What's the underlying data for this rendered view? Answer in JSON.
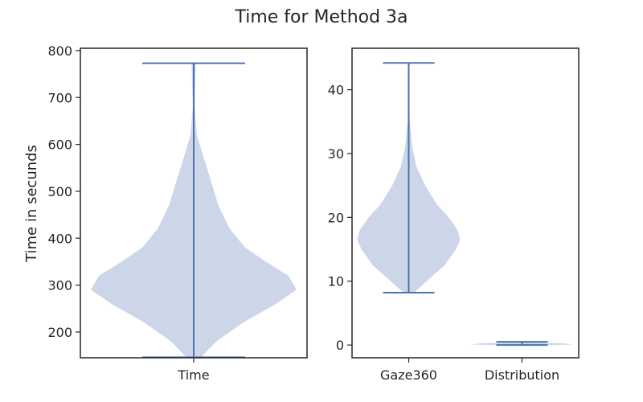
{
  "figure": {
    "title": "Time for Method 3a"
  },
  "colors": {
    "violin_fill": "#ccd6e8",
    "line": "#4c72b0",
    "frame": "#262626"
  },
  "chart_data": [
    {
      "type": "violin",
      "categories": [
        "Time"
      ],
      "ylabel": "Time in secunds",
      "ylim": [
        145,
        805
      ],
      "yticks": [
        200,
        300,
        400,
        500,
        600,
        700,
        800
      ],
      "series": [
        {
          "category": "Time",
          "min": 146,
          "max": 773,
          "density_profile": [
            [
              146,
              0.07
            ],
            [
              180,
              0.22
            ],
            [
              220,
              0.48
            ],
            [
              260,
              0.8
            ],
            [
              290,
              1.0
            ],
            [
              320,
              0.92
            ],
            [
              350,
              0.7
            ],
            [
              380,
              0.5
            ],
            [
              420,
              0.35
            ],
            [
              470,
              0.24
            ],
            [
              520,
              0.17
            ],
            [
              570,
              0.1
            ],
            [
              620,
              0.03
            ],
            [
              680,
              0.01
            ],
            [
              773,
              0.02
            ]
          ]
        }
      ]
    },
    {
      "type": "violin",
      "categories": [
        "Gaze360",
        "Distribution"
      ],
      "ylabel": "",
      "ylim": [
        -2,
        46.5
      ],
      "yticks": [
        0,
        10,
        20,
        30,
        40
      ],
      "series": [
        {
          "category": "Gaze360",
          "min": 8.2,
          "max": 44.2,
          "density_profile": [
            [
              8.2,
              0.1
            ],
            [
              10,
              0.35
            ],
            [
              12.5,
              0.7
            ],
            [
              15,
              0.92
            ],
            [
              16.5,
              1.0
            ],
            [
              18,
              0.95
            ],
            [
              20,
              0.78
            ],
            [
              22,
              0.55
            ],
            [
              25,
              0.32
            ],
            [
              28,
              0.15
            ],
            [
              31,
              0.07
            ],
            [
              35,
              0.02
            ],
            [
              40,
              0.01
            ],
            [
              44.2,
              0.01
            ]
          ]
        },
        {
          "category": "Distribution",
          "min": 0.0,
          "max": 0.5,
          "density_profile": [
            [
              0.0,
              0.6
            ],
            [
              0.1,
              1.0
            ],
            [
              0.25,
              0.8
            ],
            [
              0.4,
              0.3
            ],
            [
              0.5,
              0.1
            ]
          ]
        }
      ]
    }
  ]
}
